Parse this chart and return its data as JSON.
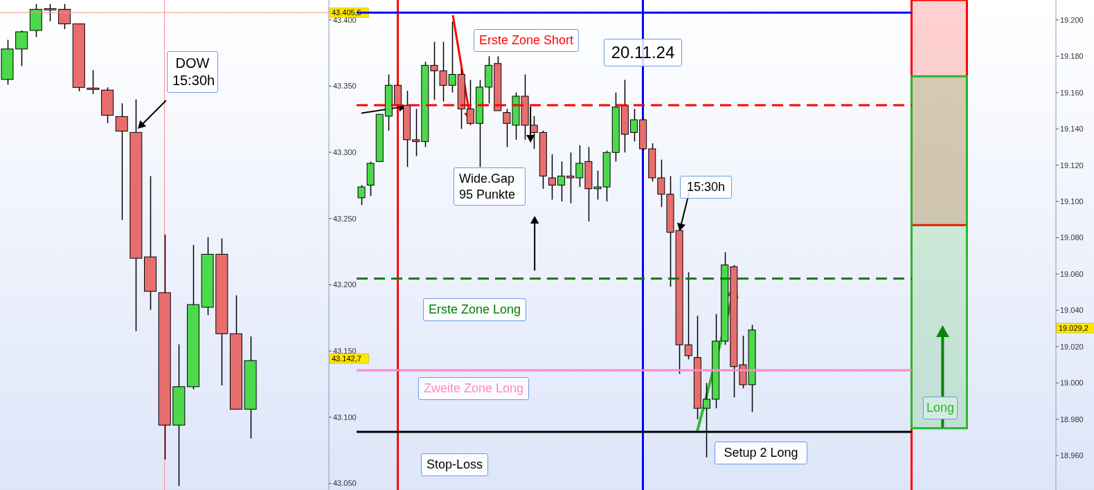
{
  "chart_data": [
    {
      "type": "candlestick",
      "tick_labels": "y",
      "categories": [
        null,
        null,
        null,
        null,
        null,
        null,
        null,
        null,
        null,
        null,
        null,
        null,
        null,
        null,
        null,
        null,
        null,
        null,
        null,
        null,
        null,
        null,
        null
      ],
      "ohlc": [
        [
          43355,
          43385,
          43351,
          43378
        ],
        [
          43378,
          43392,
          43365,
          43391
        ],
        [
          43392,
          43412,
          43387,
          43408
        ],
        [
          43408,
          43412,
          43399,
          43408
        ],
        [
          43408,
          43412,
          43393,
          43397
        ],
        [
          43397,
          43397,
          43346,
          43349
        ],
        [
          43348,
          43362,
          43344,
          43348
        ],
        [
          43347,
          43349,
          43322,
          43328
        ],
        [
          43327,
          43337,
          43249,
          43316
        ],
        [
          43315,
          43340,
          43165,
          43220
        ],
        [
          43221,
          43282,
          43181,
          43195
        ],
        [
          43194,
          43238,
          43068,
          43094
        ],
        [
          43094,
          43155,
          43048,
          43123
        ],
        [
          43123,
          43230,
          43121,
          43185
        ],
        [
          43183,
          43236,
          43177,
          43223
        ],
        [
          43223,
          43235,
          43124,
          43163
        ],
        [
          43163,
          43192,
          43106,
          43106
        ],
        [
          43106,
          43161,
          43084,
          43142.7
        ],
        null,
        null,
        null,
        null,
        null
      ],
      "colors": [
        "#4cd94c",
        "#4cd94c",
        "#4cd94c",
        "#4cd94c",
        "#e86e6e",
        "#e86e6e",
        "#e86e6e",
        "#e86e6e",
        "#e86e6e",
        "#e86e6e",
        "#e86e6e",
        "#e86e6e",
        "#4cd94c",
        "#4cd94c",
        "#4cd94c",
        "#e86e6e",
        "#e86e6e",
        "#4cd94c",
        null,
        null,
        null,
        null,
        null
      ],
      "ylim": [
        43045,
        43415
      ],
      "yticks": [
        {
          "value": 43050,
          "label": "43.050"
        },
        {
          "value": 43100,
          "label": "43.100"
        },
        {
          "value": 43150,
          "label": "43.150"
        },
        {
          "value": 43200,
          "label": "43.200"
        },
        {
          "value": 43250,
          "label": "43.250"
        },
        {
          "value": 43300,
          "label": "43.300"
        },
        {
          "value": 43350,
          "label": "43.350"
        },
        {
          "value": 43400,
          "label": "43.400"
        }
      ],
      "ref_lines": [
        {
          "axis": "y",
          "value": 43405.5,
          "color": "#ff8c8c",
          "label": "43.405,5"
        }
      ],
      "annotations": [
        "DOW 15:30h",
        "43.142,7"
      ]
    },
    {
      "type": "candlestick",
      "tick_labels": "y",
      "categories": [
        null,
        null,
        null,
        null,
        null,
        null,
        null,
        null,
        null,
        null,
        null,
        null,
        null,
        null,
        null,
        null,
        null,
        null,
        null,
        null,
        null,
        null,
        null,
        null,
        null,
        null,
        null,
        null,
        null,
        null,
        null,
        null,
        null,
        null,
        null,
        null,
        null,
        null,
        null,
        null,
        null,
        null,
        null,
        null,
        null,
        null,
        null,
        null,
        null,
        null,
        null,
        null,
        null,
        null,
        null,
        null,
        null,
        null,
        null,
        null,
        null,
        null,
        null,
        null,
        null,
        null,
        null,
        null,
        null,
        null,
        null,
        null,
        null,
        null,
        null,
        null,
        null
      ],
      "ohlc": [
        [
          19102,
          19109,
          19098,
          19108
        ],
        [
          19109,
          19122,
          19103,
          19121
        ],
        [
          19122,
          19148,
          19122,
          19148
        ],
        [
          19147,
          19170,
          19139,
          19164
        ],
        [
          19164,
          19164,
          19152,
          19153
        ],
        [
          19153,
          19161,
          19119,
          19134
        ],
        [
          19134,
          19151,
          19125,
          19133
        ],
        [
          19133,
          19177,
          19130,
          19175
        ],
        [
          19175,
          19188,
          19156,
          19172
        ],
        [
          19172,
          19188,
          19155,
          19164
        ],
        [
          19164,
          19199,
          19160,
          19170
        ],
        [
          19170,
          19173,
          19140,
          19151
        ],
        [
          19151,
          19167,
          19142,
          19143
        ],
        [
          19143,
          19167,
          19119,
          19163
        ],
        [
          19163,
          19180,
          19154,
          19175
        ],
        [
          19176,
          19180,
          19150,
          19150
        ],
        [
          19149,
          19151,
          19130,
          19143
        ],
        [
          19142,
          19160,
          19134,
          19158
        ],
        [
          19158,
          19170,
          19134,
          19142
        ],
        [
          19142,
          19147,
          19129,
          19138
        ],
        [
          19138,
          19139,
          19107,
          19114
        ],
        [
          19113,
          19126,
          19101,
          19109
        ],
        [
          19109,
          19122,
          19100,
          19114
        ],
        [
          19114,
          19127,
          19099,
          19113
        ],
        [
          19113,
          19131,
          19108,
          19121
        ],
        [
          19122,
          19130,
          19089,
          19107
        ],
        [
          19107,
          19117,
          19101,
          19108
        ],
        [
          19108,
          19128,
          19100,
          19127
        ],
        [
          19127,
          19160,
          19122,
          19152
        ],
        [
          19153,
          19167,
          19127,
          19137
        ],
        [
          19138,
          19151,
          19133,
          19145
        ],
        [
          19145,
          19146,
          19128,
          19129
        ],
        [
          19129,
          19132,
          19111,
          19113
        ],
        [
          19113,
          19123,
          19097,
          19104
        ],
        [
          19104,
          19114,
          19053,
          19083
        ],
        [
          19084,
          19084,
          19005,
          19021
        ],
        [
          19021,
          19061,
          19013,
          19015
        ],
        [
          19014,
          19037,
          18980,
          18986
        ],
        [
          18986,
          19000,
          18959,
          18991
        ],
        [
          18991,
          19038,
          18986,
          19023
        ],
        [
          19023,
          19072,
          19021,
          19065
        ],
        [
          19064,
          19065,
          18992,
          19009
        ],
        [
          19010,
          19026,
          18997,
          18999
        ],
        [
          18999,
          19032,
          18984,
          19029.2
        ],
        null,
        null,
        null,
        null,
        null,
        null,
        null,
        null,
        null,
        null,
        null,
        null,
        null,
        null,
        null,
        null,
        null,
        null,
        null,
        null,
        null,
        null,
        null,
        null,
        null,
        null,
        null,
        null,
        null,
        null,
        null,
        null,
        null
      ],
      "colors": [
        "#4cd94c",
        "#4cd94c",
        "#4cd94c",
        "#4cd94c",
        "#e86e6e",
        "#e86e6e",
        "#e86e6e",
        "#4cd94c",
        "#e86e6e",
        "#e86e6e",
        "#4cd94c",
        "#e86e6e",
        "#e86e6e",
        "#4cd94c",
        "#4cd94c",
        "#e86e6e",
        "#e86e6e",
        "#4cd94c",
        "#e86e6e",
        "#e86e6e",
        "#e86e6e",
        "#e86e6e",
        "#4cd94c",
        "#e86e6e",
        "#4cd94c",
        "#e86e6e",
        "#4cd94c",
        "#4cd94c",
        "#4cd94c",
        "#e86e6e",
        "#4cd94c",
        "#e86e6e",
        "#e86e6e",
        "#e86e6e",
        "#e86e6e",
        "#e86e6e",
        "#e86e6e",
        "#e86e6e",
        "#4cd94c",
        "#4cd94c",
        "#4cd94c",
        "#e86e6e",
        "#e86e6e",
        "#4cd94c",
        null,
        null,
        null,
        null,
        null,
        null,
        null,
        null,
        null,
        null,
        null,
        null,
        null,
        null,
        null,
        null,
        null,
        null,
        null,
        null,
        null,
        null,
        null,
        null,
        null,
        null,
        null,
        null,
        null,
        null,
        null,
        null,
        null
      ],
      "ylim": [
        18941,
        19211
      ],
      "yticks": [
        {
          "value": 18960,
          "label": "18.960"
        },
        {
          "value": 18980,
          "label": "18.980"
        },
        {
          "value": 19000,
          "label": "19.000"
        },
        {
          "value": 19020,
          "label": "19.020"
        },
        {
          "value": 19040,
          "label": "19.040"
        },
        {
          "value": 19060,
          "label": "19.060"
        },
        {
          "value": 19080,
          "label": "19.080"
        },
        {
          "value": 19100,
          "label": "19.100"
        },
        {
          "value": 19120,
          "label": "19.120"
        },
        {
          "value": 19140,
          "label": "19.140"
        },
        {
          "value": 19160,
          "label": "19.160"
        },
        {
          "value": 19180,
          "label": "19.180"
        },
        {
          "value": 19200,
          "label": "19.200"
        }
      ],
      "ref_lines": [
        {
          "axis": "y",
          "value": 19204,
          "color": "#0000ff"
        },
        {
          "axis": "y",
          "value": 19153,
          "color": "#ff0000",
          "line_style": "dashed",
          "label": "Erste Zone Short"
        },
        {
          "axis": "y",
          "value": 19057.5,
          "color": "#008000",
          "line_style": "dashed",
          "label": "Erste Zone Long"
        },
        {
          "axis": "y",
          "value": 19007,
          "color": "#ff88c8",
          "label": "Zweite Zone Long"
        },
        {
          "axis": "y",
          "value": 18973,
          "color": "#000000",
          "label": "Stop-Loss"
        }
      ],
      "bands": [
        {
          "axis": "y",
          "from": 19087,
          "to": 19211,
          "color": "#ff0000"
        },
        {
          "axis": "y",
          "from": 18975,
          "to": 19169,
          "color": "#2db52d",
          "label": "Long"
        }
      ],
      "annotations": [
        "Wide.Gap 95 Punkte",
        "20.11.24",
        "15:30h",
        "Setup 2 Long",
        "19.029,2"
      ]
    }
  ]
}
